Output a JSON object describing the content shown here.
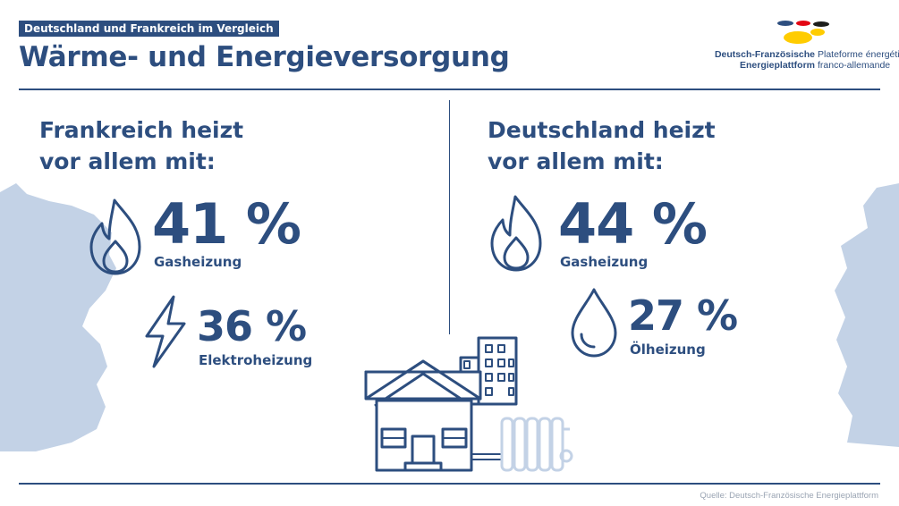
{
  "header": {
    "tag": "Deutschland und Frankreich im Vergleich",
    "title": "Wärme- und Energieversorgung"
  },
  "logo": {
    "line1_de": "Deutsch-Französische",
    "line2_de": "Energieplattform",
    "line1_fr": "Plateforme énergétique",
    "line2_fr": "franco-allemande",
    "colors": [
      "#2d4e7f",
      "#e30613",
      "#1d1d1b",
      "#ffcc00"
    ]
  },
  "france": {
    "heading_line1": "Frankreich heizt",
    "heading_line2": "vor allem mit:",
    "primary": {
      "value": "41 %",
      "label": "Gasheizung",
      "icon": "flame-icon"
    },
    "secondary": {
      "value": "36 %",
      "label": "Elektroheizung",
      "icon": "lightning-icon"
    }
  },
  "germany": {
    "heading_line1": "Deutschland heizt",
    "heading_line2": "vor allem mit:",
    "primary": {
      "value": "44 %",
      "label": "Gasheizung",
      "icon": "flame-icon"
    },
    "secondary": {
      "value": "27 %",
      "label": "Ölheizung",
      "icon": "oil-drop-icon"
    }
  },
  "source": "Quelle: Deutsch-Französische Energieplattform",
  "colors": {
    "primary": "#2d4e7f",
    "map": "#c3d2e6"
  }
}
